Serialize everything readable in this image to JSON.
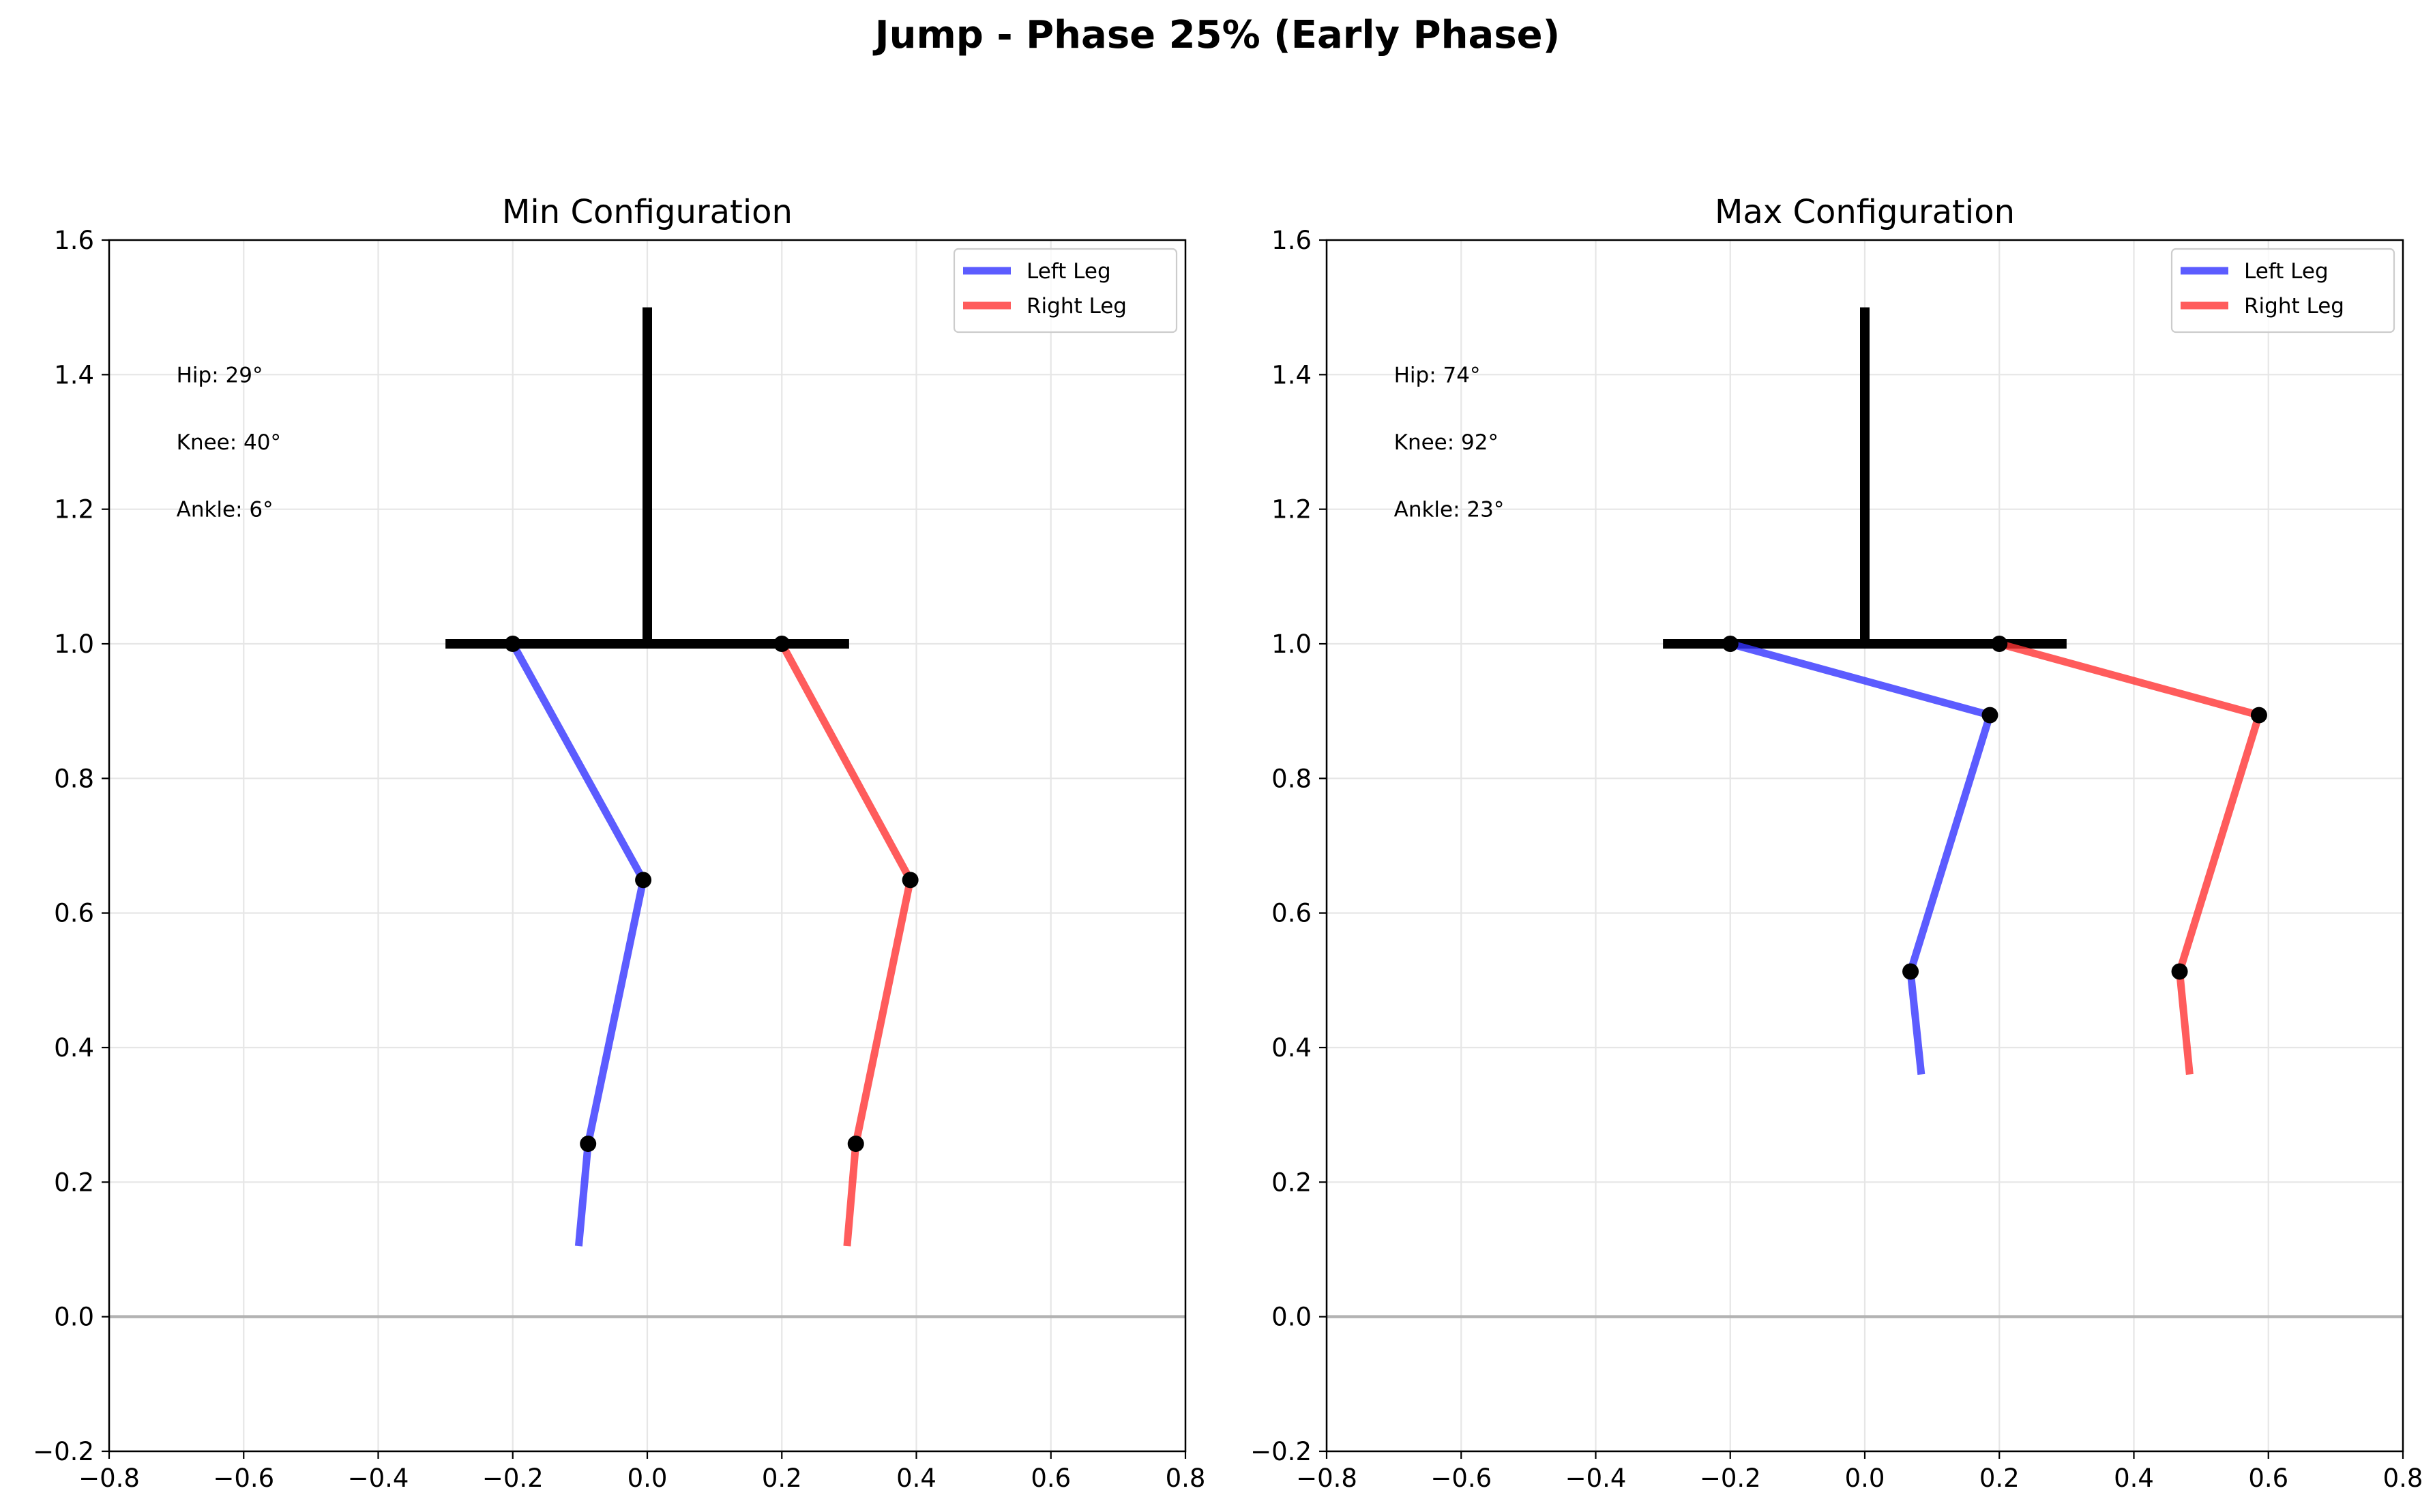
{
  "figure": {
    "suptitle": "Jump - Phase 25% (Early Phase)"
  },
  "chart_data": [
    {
      "type": "line",
      "title": "Min Configuration",
      "xlabel": "",
      "ylabel": "",
      "xlim": [
        -0.8,
        0.8
      ],
      "ylim": [
        -0.2,
        1.6
      ],
      "xticks": [
        -0.8,
        -0.6,
        -0.4,
        -0.2,
        0.0,
        0.2,
        0.4,
        0.6,
        0.8
      ],
      "yticks": [
        -0.2,
        0.0,
        0.2,
        0.4,
        0.6,
        0.8,
        1.0,
        1.2,
        1.4,
        1.6
      ],
      "xtick_labels": [
        "−0.8",
        "−0.6",
        "−0.4",
        "−0.2",
        "0.0",
        "0.2",
        "0.4",
        "0.6",
        "0.8"
      ],
      "ytick_labels": [
        "−0.2",
        "0.0",
        "0.2",
        "0.4",
        "0.6",
        "0.8",
        "1.0",
        "1.2",
        "1.4",
        "1.6"
      ],
      "grid": true,
      "ground_y": 0.0,
      "legend_position": "top-right",
      "annotations": [
        "Hip: 29°",
        "Knee: 40°",
        "Ankle: 6°"
      ],
      "body": {
        "torso": [
          [
            0.0,
            1.0
          ],
          [
            0.0,
            1.5
          ]
        ],
        "pelvis": [
          [
            -0.3,
            1.0
          ],
          [
            0.3,
            1.0
          ]
        ]
      },
      "series": [
        {
          "name": "Left Leg",
          "color": "#3333ff",
          "points": [
            [
              -0.2,
              1.0
            ],
            [
              -0.006,
              0.649
            ],
            [
              -0.088,
              0.257
            ],
            [
              -0.102,
              0.105
            ]
          ]
        },
        {
          "name": "Right Leg",
          "color": "#ff3333",
          "points": [
            [
              0.2,
              1.0
            ],
            [
              0.391,
              0.649
            ],
            [
              0.31,
              0.257
            ],
            [
              0.297,
              0.105
            ]
          ]
        }
      ]
    },
    {
      "type": "line",
      "title": "Max Configuration",
      "xlabel": "",
      "ylabel": "",
      "xlim": [
        -0.8,
        0.8
      ],
      "ylim": [
        -0.2,
        1.6
      ],
      "xticks": [
        -0.8,
        -0.6,
        -0.4,
        -0.2,
        0.0,
        0.2,
        0.4,
        0.6,
        0.8
      ],
      "yticks": [
        -0.2,
        0.0,
        0.2,
        0.4,
        0.6,
        0.8,
        1.0,
        1.2,
        1.4,
        1.6
      ],
      "xtick_labels": [
        "−0.8",
        "−0.6",
        "−0.4",
        "−0.2",
        "0.0",
        "0.2",
        "0.4",
        "0.6",
        "0.8"
      ],
      "ytick_labels": [
        "−0.2",
        "0.0",
        "0.2",
        "0.4",
        "0.6",
        "0.8",
        "1.0",
        "1.2",
        "1.4",
        "1.6"
      ],
      "grid": true,
      "ground_y": 0.0,
      "legend_position": "top-right",
      "annotations": [
        "Hip: 74°",
        "Knee: 92°",
        "Ankle: 23°"
      ],
      "body": {
        "torso": [
          [
            0.0,
            1.0
          ],
          [
            0.0,
            1.5
          ]
        ],
        "pelvis": [
          [
            -0.3,
            1.0
          ],
          [
            0.3,
            1.0
          ]
        ]
      },
      "series": [
        {
          "name": "Left Leg",
          "color": "#3333ff",
          "points": [
            [
              -0.2,
              1.0
            ],
            [
              0.186,
              0.894
            ],
            [
              0.068,
              0.513
            ],
            [
              0.084,
              0.36
            ]
          ]
        },
        {
          "name": "Right Leg",
          "color": "#ff3333",
          "points": [
            [
              0.2,
              1.0
            ],
            [
              0.586,
              0.894
            ],
            [
              0.468,
              0.513
            ],
            [
              0.483,
              0.36
            ]
          ]
        }
      ]
    }
  ]
}
